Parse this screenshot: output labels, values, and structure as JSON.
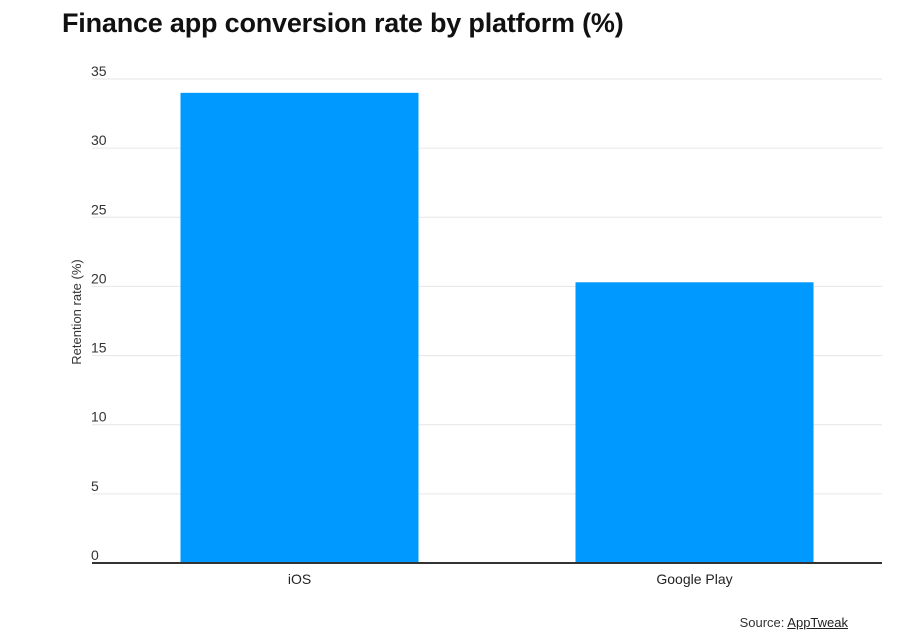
{
  "chart_data": {
    "type": "bar",
    "title": "Finance app conversion rate by platform (%)",
    "categories": [
      "iOS",
      "Google Play"
    ],
    "values": [
      34,
      20.3
    ],
    "xlabel": "",
    "ylabel": "Retention rate (%)",
    "ylim": [
      0,
      35
    ],
    "yticks": [
      0,
      5,
      10,
      15,
      20,
      25,
      30,
      35
    ],
    "grid": true,
    "bar_color": "#0099ff",
    "grid_color": "#e6e6e6",
    "axis_color": "#333333"
  },
  "source": {
    "label": "Source:",
    "name": "AppTweak"
  }
}
